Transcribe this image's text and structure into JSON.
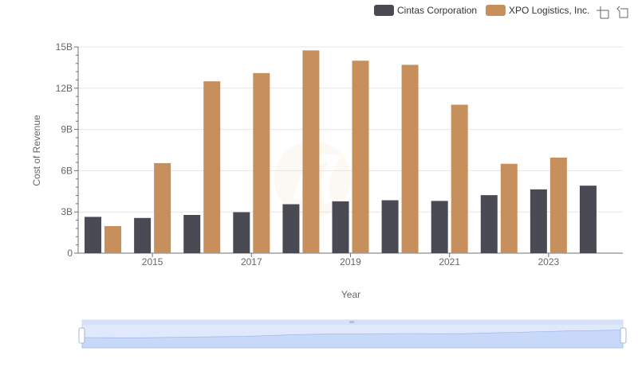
{
  "legend": {
    "items": [
      {
        "name": "Cintas Corporation",
        "color": "#4a4a55"
      },
      {
        "name": "XPO Logistics, Inc.",
        "color": "#c68f5c"
      }
    ]
  },
  "toolbar": {
    "zoom_icon": "zoom-icon",
    "restore_icon": "restore-icon"
  },
  "chart_data": {
    "type": "bar",
    "xlabel": "Year",
    "ylabel": "Cost of Revenue",
    "ylim": [
      0,
      15
    ],
    "y_unit": "B",
    "y_ticks": [
      0,
      3,
      6,
      9,
      12,
      15
    ],
    "y_tick_labels": [
      "0",
      "3B",
      "6B",
      "9B",
      "12B",
      "15B"
    ],
    "categories": [
      "2014",
      "2015",
      "2016",
      "2017",
      "2018",
      "2019",
      "2020",
      "2021",
      "2022",
      "2023",
      "2024"
    ],
    "x_tick_labels": [
      "2015",
      "2017",
      "2019",
      "2021",
      "2023"
    ],
    "series": [
      {
        "name": "Cintas Corporation",
        "color": "#4a4a55",
        "values": [
          2.64,
          2.56,
          2.78,
          2.98,
          3.56,
          3.77,
          3.85,
          3.8,
          4.22,
          4.64,
          4.91
        ]
      },
      {
        "name": "XPO Logistics, Inc.",
        "color": "#c68f5c",
        "values": [
          1.97,
          6.55,
          12.5,
          13.1,
          14.75,
          14.0,
          13.7,
          10.8,
          6.5,
          6.95,
          null
        ]
      }
    ],
    "grid": true,
    "legend_position": "top-right",
    "data_zoom": {
      "start_percent": 0,
      "end_percent": 100
    }
  }
}
